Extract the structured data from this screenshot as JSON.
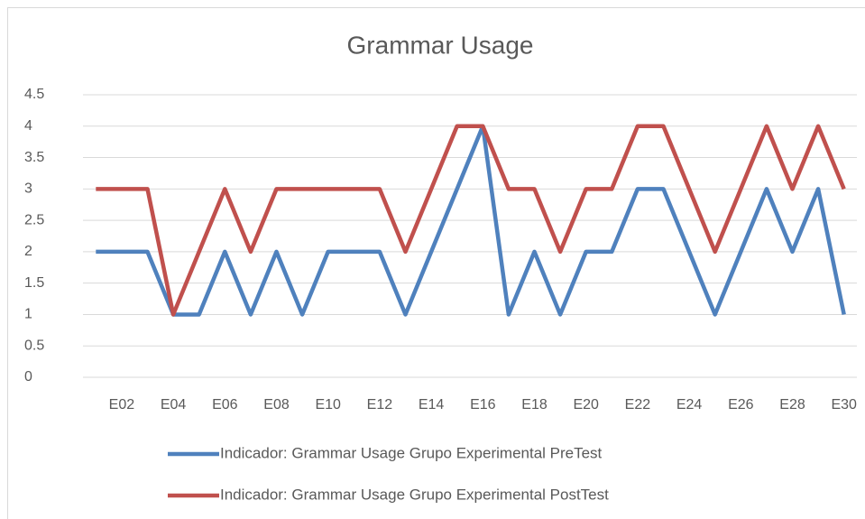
{
  "chart_data": {
    "type": "line",
    "title": "Grammar Usage",
    "categories": [
      null,
      "E02",
      null,
      "E04",
      null,
      "E06",
      null,
      "E08",
      null,
      "E10",
      null,
      "E12",
      null,
      "E14",
      null,
      "E16",
      null,
      "E18",
      null,
      "E20",
      null,
      "E22",
      null,
      "E24",
      null,
      "E26",
      null,
      "E28",
      null,
      "E30"
    ],
    "series": [
      {
        "name": "Indicador: Grammar Usage Grupo Experimental PreTest",
        "color": "#4f81bd",
        "values": [
          2,
          2,
          2,
          1,
          1,
          2,
          1,
          2,
          1,
          2,
          2,
          2,
          1,
          2,
          3,
          4,
          1,
          2,
          1,
          2,
          2,
          3,
          3,
          2,
          1,
          2,
          3,
          2,
          3,
          1
        ]
      },
      {
        "name": "Indicador: Grammar Usage Grupo Experimental PostTest",
        "color": "#c0504d",
        "values": [
          3,
          3,
          3,
          1,
          2,
          3,
          2,
          3,
          3,
          3,
          3,
          3,
          2,
          3,
          4,
          4,
          3,
          3,
          2,
          3,
          3,
          4,
          4,
          3,
          2,
          3,
          4,
          3,
          4,
          3
        ]
      }
    ],
    "ylim": [
      0,
      4.5
    ],
    "yticks": [
      0,
      0.5,
      1,
      1.5,
      2,
      2.5,
      3,
      3.5,
      4,
      4.5
    ],
    "grid": true,
    "legend": "bottom"
  }
}
